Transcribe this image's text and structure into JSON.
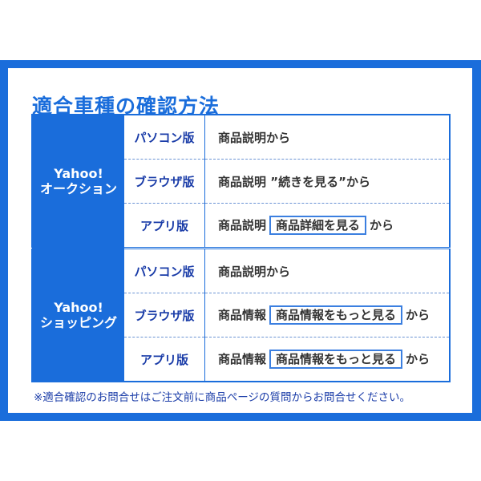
{
  "title": "適合車種の確認方法",
  "sections": [
    {
      "service_line1": "Yahoo!",
      "service_line2": "オークション",
      "rows": [
        {
          "platform": "パソコン版",
          "text": "商品説明から",
          "button": "",
          "suffix": ""
        },
        {
          "platform": "ブラウザ版",
          "text": "商品説明 ”続きを見る”から",
          "button": "",
          "suffix": ""
        },
        {
          "platform": "アプリ版",
          "text": "商品説明",
          "button": "商品詳細を見る",
          "suffix": "から"
        }
      ]
    },
    {
      "service_line1": "Yahoo!",
      "service_line2": "ショッピング",
      "rows": [
        {
          "platform": "パソコン版",
          "text": "商品説明から",
          "button": "",
          "suffix": ""
        },
        {
          "platform": "ブラウザ版",
          "text": "商品情報",
          "button": "商品情報をもっと見る",
          "suffix": "から"
        },
        {
          "platform": "アプリ版",
          "text": "商品情報",
          "button": "商品情報をもっと見る",
          "suffix": "から"
        }
      ]
    }
  ],
  "note": "※適合確認のお問合せはご注文前に商品ページの質問からお問合せください。",
  "colors": {
    "accent": "#1a6ddb",
    "label": "#1a3ca8",
    "text": "#333333"
  }
}
